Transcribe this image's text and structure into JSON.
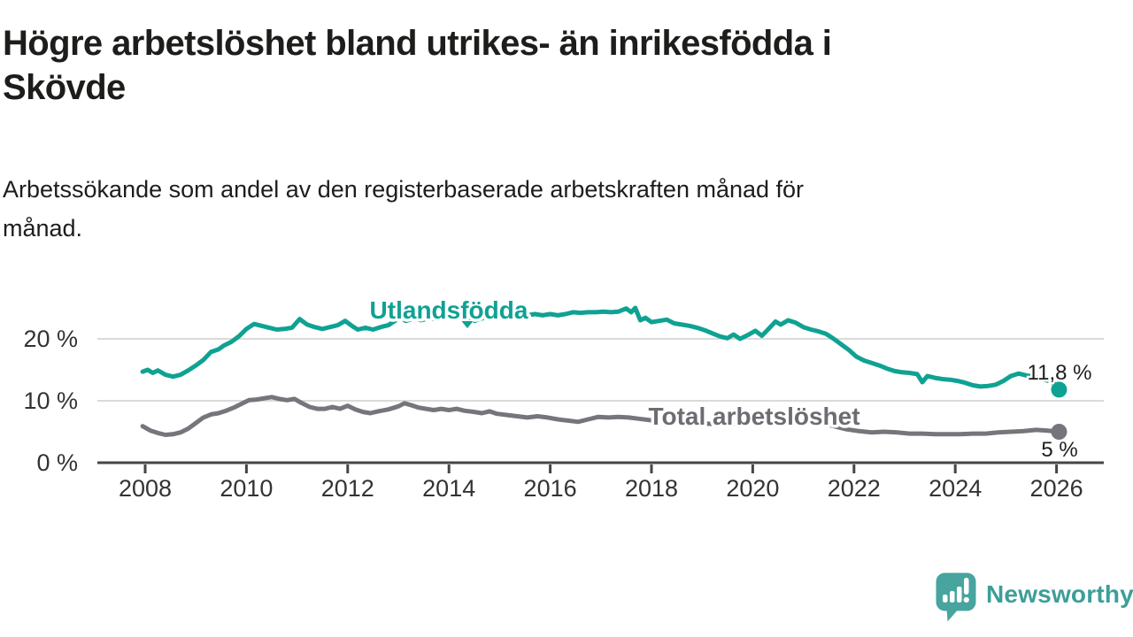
{
  "title": {
    "lines": [
      "Högre arbetslöshet bland utrikes- än inrikesfödda i",
      "Skövde"
    ]
  },
  "subtitle": {
    "lines": [
      "Arbetssökande som andel av den registerbaserade arbetskraften månad för",
      "månad."
    ]
  },
  "chart_data": {
    "type": "line",
    "unit": "%",
    "x_axis": {
      "range": [
        2007.9,
        2026.45
      ],
      "ticks": [
        2008,
        2010,
        2012,
        2014,
        2016,
        2018,
        2020,
        2022,
        2024,
        2026
      ],
      "labels": [
        "2008",
        "2010",
        "2012",
        "2014",
        "2016",
        "2018",
        "2020",
        "2022",
        "2024",
        "2026"
      ]
    },
    "y_axis": {
      "range": [
        0,
        26
      ],
      "ticks": [
        0,
        10,
        20
      ],
      "labels": [
        "0 %",
        "10 %",
        "20 %"
      ],
      "grid_values": [
        10,
        20
      ]
    },
    "series": [
      {
        "name": "Utlandsfödda",
        "color": "#0fa293",
        "end_label": "11,8 %",
        "last_value": 11.8,
        "points": [
          [
            2007.95,
            14.7
          ],
          [
            2008.05,
            15.0
          ],
          [
            2008.15,
            14.5
          ],
          [
            2008.25,
            14.9
          ],
          [
            2008.4,
            14.2
          ],
          [
            2008.55,
            13.9
          ],
          [
            2008.7,
            14.2
          ],
          [
            2008.85,
            14.9
          ],
          [
            2009.0,
            15.7
          ],
          [
            2009.15,
            16.6
          ],
          [
            2009.3,
            17.9
          ],
          [
            2009.45,
            18.3
          ],
          [
            2009.55,
            18.9
          ],
          [
            2009.7,
            19.5
          ],
          [
            2009.85,
            20.4
          ],
          [
            2010.0,
            21.6
          ],
          [
            2010.15,
            22.4
          ],
          [
            2010.3,
            22.1
          ],
          [
            2010.45,
            21.8
          ],
          [
            2010.6,
            21.5
          ],
          [
            2010.75,
            21.6
          ],
          [
            2010.9,
            21.8
          ],
          [
            2011.05,
            23.2
          ],
          [
            2011.2,
            22.3
          ],
          [
            2011.35,
            21.9
          ],
          [
            2011.5,
            21.6
          ],
          [
            2011.65,
            21.9
          ],
          [
            2011.8,
            22.2
          ],
          [
            2011.95,
            22.9
          ],
          [
            2012.1,
            22.0
          ],
          [
            2012.2,
            21.5
          ],
          [
            2012.35,
            21.8
          ],
          [
            2012.5,
            21.5
          ],
          [
            2012.65,
            21.9
          ],
          [
            2012.8,
            22.2
          ],
          [
            2012.95,
            23.0
          ],
          [
            2013.05,
            23.4
          ],
          [
            2013.15,
            22.9
          ],
          [
            2013.3,
            23.3
          ],
          [
            2013.45,
            23.0
          ],
          [
            2013.6,
            23.3
          ],
          [
            2013.75,
            23.2
          ],
          [
            2013.9,
            23.4
          ],
          [
            2014.05,
            23.3
          ],
          [
            2014.2,
            23.6
          ],
          [
            2014.35,
            23.4
          ],
          [
            2014.5,
            22.9
          ],
          [
            2014.65,
            23.3
          ],
          [
            2014.8,
            23.7
          ],
          [
            2014.95,
            23.5
          ],
          [
            2015.1,
            23.7
          ],
          [
            2015.25,
            23.9
          ],
          [
            2015.4,
            24.1
          ],
          [
            2015.55,
            23.8
          ],
          [
            2015.7,
            24.0
          ],
          [
            2015.85,
            23.8
          ],
          [
            2016.0,
            24.0
          ],
          [
            2016.15,
            23.8
          ],
          [
            2016.3,
            24.0
          ],
          [
            2016.45,
            24.3
          ],
          [
            2016.6,
            24.2
          ],
          [
            2016.75,
            24.3
          ],
          [
            2016.9,
            24.3
          ],
          [
            2017.05,
            24.4
          ],
          [
            2017.2,
            24.3
          ],
          [
            2017.35,
            24.4
          ],
          [
            2017.5,
            24.9
          ],
          [
            2017.6,
            24.3
          ],
          [
            2017.68,
            25.0
          ],
          [
            2017.78,
            23.0
          ],
          [
            2017.88,
            23.4
          ],
          [
            2018.0,
            22.7
          ],
          [
            2018.15,
            22.9
          ],
          [
            2018.3,
            23.1
          ],
          [
            2018.45,
            22.5
          ],
          [
            2018.6,
            22.3
          ],
          [
            2018.75,
            22.1
          ],
          [
            2018.9,
            21.8
          ],
          [
            2019.05,
            21.4
          ],
          [
            2019.2,
            20.9
          ],
          [
            2019.35,
            20.4
          ],
          [
            2019.5,
            20.1
          ],
          [
            2019.62,
            20.7
          ],
          [
            2019.75,
            20.0
          ],
          [
            2019.9,
            20.6
          ],
          [
            2020.05,
            21.3
          ],
          [
            2020.18,
            20.5
          ],
          [
            2020.3,
            21.5
          ],
          [
            2020.45,
            22.8
          ],
          [
            2020.55,
            22.3
          ],
          [
            2020.7,
            23.0
          ],
          [
            2020.85,
            22.6
          ],
          [
            2021.0,
            21.9
          ],
          [
            2021.15,
            21.5
          ],
          [
            2021.3,
            21.2
          ],
          [
            2021.45,
            20.8
          ],
          [
            2021.6,
            20.0
          ],
          [
            2021.75,
            19.1
          ],
          [
            2021.9,
            18.2
          ],
          [
            2022.05,
            17.1
          ],
          [
            2022.2,
            16.5
          ],
          [
            2022.35,
            16.1
          ],
          [
            2022.5,
            15.7
          ],
          [
            2022.65,
            15.2
          ],
          [
            2022.8,
            14.8
          ],
          [
            2022.95,
            14.6
          ],
          [
            2023.1,
            14.5
          ],
          [
            2023.25,
            14.3
          ],
          [
            2023.35,
            13.0
          ],
          [
            2023.45,
            14.0
          ],
          [
            2023.6,
            13.7
          ],
          [
            2023.75,
            13.5
          ],
          [
            2023.9,
            13.4
          ],
          [
            2024.05,
            13.2
          ],
          [
            2024.2,
            12.9
          ],
          [
            2024.35,
            12.5
          ],
          [
            2024.5,
            12.3
          ],
          [
            2024.65,
            12.4
          ],
          [
            2024.8,
            12.6
          ],
          [
            2024.95,
            13.2
          ],
          [
            2025.1,
            14.0
          ],
          [
            2025.25,
            14.4
          ],
          [
            2025.4,
            14.1
          ],
          [
            2025.55,
            13.9
          ],
          [
            2025.7,
            13.5
          ],
          [
            2025.85,
            13.2
          ],
          [
            2025.95,
            12.8
          ],
          [
            2026.05,
            11.8
          ]
        ]
      },
      {
        "name": "Total arbetslöshet",
        "color": "#76757b",
        "label_color": "#6d6c72",
        "end_label": "5 %",
        "last_value": 5.0,
        "points": [
          [
            2007.95,
            5.9
          ],
          [
            2008.1,
            5.2
          ],
          [
            2008.25,
            4.8
          ],
          [
            2008.4,
            4.5
          ],
          [
            2008.55,
            4.6
          ],
          [
            2008.7,
            4.9
          ],
          [
            2008.85,
            5.5
          ],
          [
            2009.0,
            6.4
          ],
          [
            2009.15,
            7.3
          ],
          [
            2009.3,
            7.8
          ],
          [
            2009.45,
            8.0
          ],
          [
            2009.6,
            8.4
          ],
          [
            2009.75,
            8.9
          ],
          [
            2009.9,
            9.5
          ],
          [
            2010.05,
            10.1
          ],
          [
            2010.2,
            10.2
          ],
          [
            2010.35,
            10.4
          ],
          [
            2010.5,
            10.6
          ],
          [
            2010.65,
            10.3
          ],
          [
            2010.8,
            10.1
          ],
          [
            2010.95,
            10.3
          ],
          [
            2011.1,
            9.6
          ],
          [
            2011.25,
            9.0
          ],
          [
            2011.4,
            8.7
          ],
          [
            2011.55,
            8.7
          ],
          [
            2011.7,
            9.0
          ],
          [
            2011.85,
            8.7
          ],
          [
            2012.0,
            9.2
          ],
          [
            2012.15,
            8.6
          ],
          [
            2012.3,
            8.2
          ],
          [
            2012.45,
            8.0
          ],
          [
            2012.6,
            8.3
          ],
          [
            2012.8,
            8.6
          ],
          [
            2013.0,
            9.1
          ],
          [
            2013.12,
            9.6
          ],
          [
            2013.25,
            9.3
          ],
          [
            2013.4,
            8.9
          ],
          [
            2013.55,
            8.7
          ],
          [
            2013.7,
            8.5
          ],
          [
            2013.85,
            8.7
          ],
          [
            2014.0,
            8.5
          ],
          [
            2014.15,
            8.7
          ],
          [
            2014.3,
            8.4
          ],
          [
            2014.5,
            8.2
          ],
          [
            2014.65,
            8.0
          ],
          [
            2014.8,
            8.3
          ],
          [
            2014.95,
            7.9
          ],
          [
            2015.15,
            7.7
          ],
          [
            2015.35,
            7.5
          ],
          [
            2015.55,
            7.3
          ],
          [
            2015.75,
            7.5
          ],
          [
            2015.95,
            7.3
          ],
          [
            2016.15,
            7.0
          ],
          [
            2016.35,
            6.8
          ],
          [
            2016.55,
            6.6
          ],
          [
            2016.75,
            7.0
          ],
          [
            2016.95,
            7.4
          ],
          [
            2017.15,
            7.3
          ],
          [
            2017.35,
            7.4
          ],
          [
            2017.55,
            7.3
          ],
          [
            2017.75,
            7.1
          ],
          [
            2017.95,
            6.9
          ],
          [
            2018.2,
            6.7
          ],
          [
            2018.5,
            6.5
          ],
          [
            2018.8,
            6.4
          ],
          [
            2019.1,
            6.3
          ],
          [
            2019.4,
            6.2
          ],
          [
            2019.7,
            6.3
          ],
          [
            2020.0,
            6.6
          ],
          [
            2020.25,
            7.6
          ],
          [
            2020.45,
            8.2
          ],
          [
            2020.65,
            8.0
          ],
          [
            2020.9,
            7.6
          ],
          [
            2021.1,
            7.2
          ],
          [
            2021.35,
            6.5
          ],
          [
            2021.6,
            5.9
          ],
          [
            2021.85,
            5.4
          ],
          [
            2022.1,
            5.1
          ],
          [
            2022.35,
            4.9
          ],
          [
            2022.6,
            5.0
          ],
          [
            2022.85,
            4.9
          ],
          [
            2023.1,
            4.7
          ],
          [
            2023.35,
            4.7
          ],
          [
            2023.6,
            4.6
          ],
          [
            2023.85,
            4.6
          ],
          [
            2024.1,
            4.6
          ],
          [
            2024.35,
            4.7
          ],
          [
            2024.6,
            4.7
          ],
          [
            2024.85,
            4.9
          ],
          [
            2025.1,
            5.0
          ],
          [
            2025.35,
            5.1
          ],
          [
            2025.6,
            5.3
          ],
          [
            2025.8,
            5.2
          ],
          [
            2026.05,
            5.0
          ]
        ]
      }
    ]
  },
  "colors": {
    "text": "#1d1d1b",
    "axis_text": "#333333",
    "axis_line": "#454545",
    "gridline": "#dadada",
    "accent_teal": "#0fa293",
    "series_gray": "#76757b",
    "logo_teal": "#47a49f"
  },
  "branding": {
    "logo_text": "Newsworthy"
  }
}
